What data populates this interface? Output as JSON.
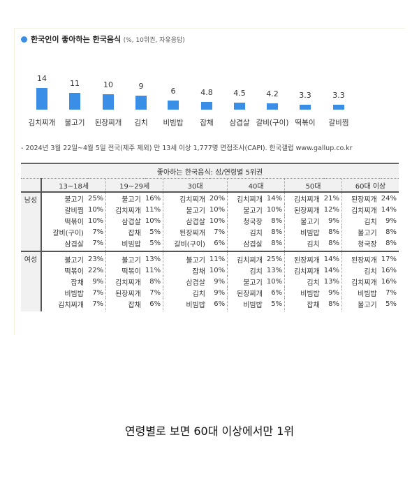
{
  "title": {
    "main": "한국인이 좋아하는 한국음식",
    "sub": "(%, 10위권, 자유응답)"
  },
  "chart_data": {
    "type": "bar",
    "title": "한국인이 좋아하는 한국음식 (%, 10위권, 자유응답)",
    "categories": [
      "김치찌개",
      "불고기",
      "된장찌개",
      "김치",
      "비빔밥",
      "잡채",
      "삼겹살",
      "갈비(구이)",
      "떡볶이",
      "갈비찜"
    ],
    "values": [
      14,
      11,
      10,
      9,
      6,
      4.8,
      4.5,
      4.2,
      3.3,
      3.3
    ],
    "value_labels": [
      "14",
      "11",
      "10",
      "9",
      "6",
      "4.8",
      "4.5",
      "4.2",
      "3.3",
      "3.3"
    ],
    "xlabel": "",
    "ylabel": "",
    "ylim": [
      0,
      14
    ],
    "grid": false,
    "legend": "none",
    "bar_color": "#3a8ee6"
  },
  "footnote": "- 2024년 3월 22일~4월 5일 전국(제주 제외) 만 13세 이상 1,777명 면접조사(CAPI). 한국갤럽 www.gallup.co.kr",
  "table": {
    "caption": "좋아하는 한국음식: 성/연령별 5위권",
    "age_groups": [
      "13~18세",
      "19~29세",
      "30대",
      "40대",
      "50대",
      "60대 이상"
    ],
    "groups": [
      {
        "sex": "남성",
        "rows": [
          [
            [
              "불고기",
              "25%"
            ],
            [
              "불고기",
              "16%"
            ],
            [
              "김치찌개",
              "20%"
            ],
            [
              "김치찌개",
              "14%"
            ],
            [
              "김치찌개",
              "21%"
            ],
            [
              "된장찌개",
              "24%"
            ]
          ],
          [
            [
              "갈비찜",
              "10%"
            ],
            [
              "김치찌개",
              "11%"
            ],
            [
              "불고기",
              "10%"
            ],
            [
              "불고기",
              "10%"
            ],
            [
              "된장찌개",
              "12%"
            ],
            [
              "김치찌개",
              "14%"
            ]
          ],
          [
            [
              "떡볶이",
              "10%"
            ],
            [
              "삼겹살",
              "10%"
            ],
            [
              "삼겹살",
              "10%"
            ],
            [
              "청국장",
              "8%"
            ],
            [
              "불고기",
              "9%"
            ],
            [
              "김치",
              "9%"
            ]
          ],
          [
            [
              "갈비(구이)",
              "7%"
            ],
            [
              "잡채",
              "5%"
            ],
            [
              "된장찌개",
              "7%"
            ],
            [
              "김치",
              "8%"
            ],
            [
              "비빔밥",
              "8%"
            ],
            [
              "불고기",
              "8%"
            ]
          ],
          [
            [
              "삼겹살",
              "7%"
            ],
            [
              "비빔밥",
              "5%"
            ],
            [
              "갈비(구이)",
              "6%"
            ],
            [
              "삼겹살",
              "8%"
            ],
            [
              "김치",
              "8%"
            ],
            [
              "청국장",
              "8%"
            ]
          ]
        ]
      },
      {
        "sex": "여성",
        "rows": [
          [
            [
              "불고기",
              "23%"
            ],
            [
              "불고기",
              "13%"
            ],
            [
              "불고기",
              "11%"
            ],
            [
              "김치찌개",
              "25%"
            ],
            [
              "된장찌개",
              "14%"
            ],
            [
              "된장찌개",
              "17%"
            ]
          ],
          [
            [
              "떡볶이",
              "22%"
            ],
            [
              "떡볶이",
              "11%"
            ],
            [
              "잡채",
              "10%"
            ],
            [
              "김치",
              "13%"
            ],
            [
              "김치찌개",
              "14%"
            ],
            [
              "김치",
              "16%"
            ]
          ],
          [
            [
              "잡채",
              "9%"
            ],
            [
              "김치찌개",
              "8%"
            ],
            [
              "삼겹살",
              "9%"
            ],
            [
              "불고기",
              "10%"
            ],
            [
              "김치",
              "13%"
            ],
            [
              "김치찌개",
              "16%"
            ]
          ],
          [
            [
              "비빔밥",
              "7%"
            ],
            [
              "된장찌개",
              "7%"
            ],
            [
              "김치",
              "9%"
            ],
            [
              "된장찌개",
              "6%"
            ],
            [
              "비빔밥",
              "9%"
            ],
            [
              "비빔밥",
              "7%"
            ]
          ],
          [
            [
              "김치찌개",
              "7%"
            ],
            [
              "잡채",
              "6%"
            ],
            [
              "비빔밥",
              "6%"
            ],
            [
              "비빔밥",
              "5%"
            ],
            [
              "잡채",
              "8%"
            ],
            [
              "불고기",
              "5%"
            ]
          ]
        ]
      }
    ]
  },
  "caption": "연령별로 보면 60대 이상에서만 1위"
}
